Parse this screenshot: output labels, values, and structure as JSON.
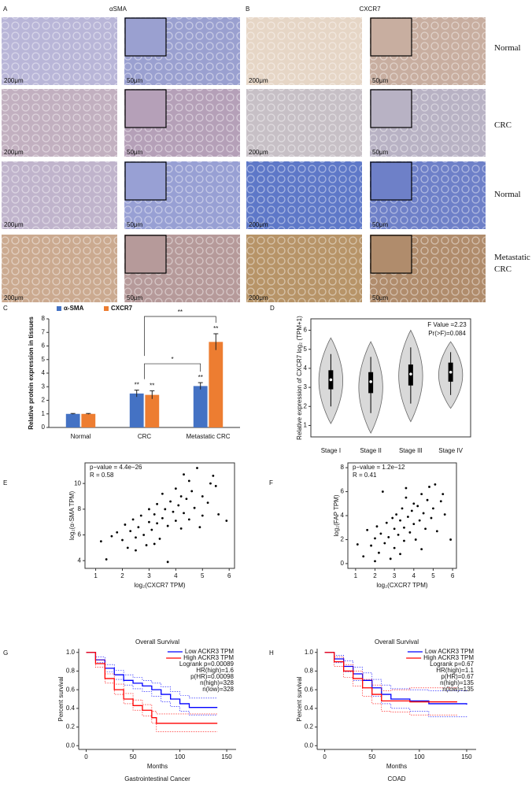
{
  "figure": {
    "panel_letters": [
      "A",
      "B",
      "C",
      "D",
      "E",
      "F",
      "G",
      "H"
    ],
    "stain_labels": [
      "αSMA",
      "CXCR7"
    ],
    "row_labels": [
      "Normal",
      "CRC",
      "Normal",
      "Metastatic CRC"
    ],
    "scale_labels": [
      "200μm",
      "50μm"
    ]
  },
  "chart_data": [
    {
      "type": "bar",
      "categories": [
        "Normal",
        "CRC",
        "Metastatic CRC"
      ],
      "series": [
        {
          "name": "α-SMA",
          "color": "#4472c4",
          "values": [
            1.0,
            2.5,
            3.05
          ],
          "errors": [
            0.03,
            0.25,
            0.25
          ],
          "significance": [
            null,
            "**",
            "**"
          ]
        },
        {
          "name": "CXCR7",
          "color": "#ed7d31",
          "values": [
            1.0,
            2.4,
            6.3
          ],
          "errors": [
            0.03,
            0.3,
            0.6
          ],
          "significance": [
            null,
            "**",
            "**"
          ]
        }
      ],
      "ylabel": "Relative protein expression in tissues",
      "ylim": [
        0,
        8
      ],
      "yticks": [
        0,
        1,
        2,
        3,
        4,
        5,
        6,
        7,
        8
      ],
      "comparisons": [
        "*",
        "**"
      ]
    },
    {
      "type": "violin",
      "categories": [
        "Stage I",
        "Stage II",
        "Stage III",
        "Stage IV"
      ],
      "stats": [
        {
          "min": 1.1,
          "q1": 2.9,
          "median": 3.4,
          "q3": 3.9,
          "max": 5.6
        },
        {
          "min": 0.6,
          "q1": 2.7,
          "median": 3.3,
          "q3": 3.8,
          "max": 5.4
        },
        {
          "min": 1.2,
          "q1": 3.1,
          "median": 3.7,
          "q3": 4.2,
          "max": 6.0
        },
        {
          "min": 1.9,
          "q1": 3.3,
          "median": 3.8,
          "q3": 4.3,
          "max": 5.4
        }
      ],
      "ylabel": "Relative expression of CXCR7 log₂ (TPM+1)",
      "ylim": [
        0.4,
        6.6
      ],
      "yticks": [
        1,
        2,
        3,
        4,
        5,
        6
      ],
      "annotations": [
        "F Value =2.23",
        "Pr(>F)=0.084"
      ],
      "color": "#d9d9d9",
      "frame": true
    },
    {
      "type": "scatter",
      "x": [
        1.2,
        1.4,
        1.6,
        1.8,
        2.0,
        2.1,
        2.2,
        2.3,
        2.4,
        2.5,
        2.6,
        2.7,
        2.8,
        2.9,
        3.0,
        3.0,
        3.1,
        3.2,
        3.3,
        3.3,
        3.4,
        3.5,
        3.5,
        3.6,
        3.7,
        3.7,
        3.8,
        3.9,
        4.0,
        4.0,
        4.1,
        4.2,
        4.2,
        4.3,
        4.4,
        4.5,
        4.5,
        4.6,
        4.7,
        4.8,
        4.9,
        5.0,
        5.0,
        5.2,
        5.3,
        5.4,
        5.5,
        5.6,
        5.9,
        2.5,
        3.2,
        4.3
      ],
      "y": [
        5.5,
        4.1,
        5.9,
        6.2,
        5.6,
        6.8,
        5.0,
        6.3,
        7.2,
        5.8,
        6.6,
        7.5,
        6.0,
        5.2,
        7.0,
        8.0,
        6.4,
        7.6,
        6.9,
        8.4,
        5.7,
        7.3,
        9.2,
        8.0,
        6.7,
        3.9,
        8.6,
        7.8,
        7.1,
        9.6,
        8.3,
        6.5,
        9.0,
        7.7,
        8.8,
        10.2,
        7.2,
        9.4,
        8.1,
        11.2,
        6.6,
        9.0,
        7.5,
        8.5,
        10.0,
        10.6,
        9.8,
        7.6,
        7.1,
        4.8,
        5.3,
        10.7
      ],
      "xlabel": "log₂(CXCR7 TPM)",
      "ylabel": "log₂(α-SMA TPM)",
      "xlim": [
        0.6,
        6.2
      ],
      "xticks": [
        1,
        2,
        3,
        4,
        5,
        6
      ],
      "ylim": [
        3.4,
        11.6
      ],
      "yticks": [
        4,
        6,
        8,
        10
      ],
      "annotations": [
        "p−value = 4.4e−26",
        "R = 0.58"
      ],
      "color": "#000000",
      "frame": true
    },
    {
      "type": "scatter",
      "x": [
        1.1,
        1.4,
        1.6,
        1.8,
        2.0,
        2.1,
        2.2,
        2.3,
        2.4,
        2.5,
        2.6,
        2.7,
        2.8,
        2.9,
        3.0,
        3.0,
        3.1,
        3.2,
        3.3,
        3.3,
        3.4,
        3.5,
        3.5,
        3.6,
        3.7,
        3.8,
        3.9,
        4.0,
        4.0,
        4.1,
        4.2,
        4.3,
        4.4,
        4.5,
        4.6,
        4.7,
        4.8,
        4.9,
        5.0,
        5.1,
        5.2,
        5.4,
        5.5,
        5.6,
        5.9,
        2.0,
        3.6,
        4.4
      ],
      "y": [
        1.6,
        0.6,
        2.8,
        1.5,
        2.1,
        3.1,
        0.9,
        2.5,
        6.0,
        1.7,
        3.4,
        2.2,
        0.4,
        3.8,
        2.9,
        1.3,
        4.1,
        2.4,
        3.6,
        0.8,
        4.6,
        3.0,
        1.9,
        5.5,
        3.9,
        2.6,
        4.4,
        3.3,
        5.0,
        2.0,
        4.8,
        3.6,
        5.8,
        4.2,
        2.9,
        5.3,
        6.4,
        3.8,
        4.6,
        6.6,
        2.7,
        5.2,
        5.8,
        4.1,
        2.0,
        0.2,
        6.3,
        1.2
      ],
      "xlabel": "log₂(CXCR7 TPM)",
      "ylabel": "log₂(FAP TPM)",
      "xlim": [
        0.6,
        6.2
      ],
      "xticks": [
        1,
        2,
        3,
        4,
        5,
        6
      ],
      "ylim": [
        -0.4,
        8.4
      ],
      "yticks": [
        0,
        2,
        4,
        6,
        8
      ],
      "annotations": [
        "p−value = 1.2e−12",
        "R = 0.41"
      ],
      "color": "#000000",
      "frame": true
    },
    {
      "type": "km",
      "title": "Overall Survival",
      "xlabel": "Months",
      "subtitle": "Gastrointestinal Cancer",
      "ylabel": "Percent survival",
      "xlim": [
        -8,
        160
      ],
      "xticks": [
        0,
        50,
        100,
        150
      ],
      "ylim": [
        -0.04,
        1.04
      ],
      "yticks": [
        {
          "value": 0,
          "label": "0.0"
        },
        0.2,
        0.4,
        0.6,
        0.8,
        {
          "value": 1,
          "label": "1.0"
        }
      ],
      "series": [
        {
          "name": "Low ACKR3 TPM",
          "color": "#0000ff",
          "x": [
            0,
            10,
            20,
            30,
            40,
            50,
            60,
            70,
            80,
            90,
            100,
            110,
            140
          ],
          "values": [
            1,
            0.92,
            0.83,
            0.76,
            0.7,
            0.67,
            0.64,
            0.6,
            0.55,
            0.5,
            0.45,
            0.41,
            0.41
          ],
          "lower": [
            1,
            0.89,
            0.79,
            0.71,
            0.65,
            0.61,
            0.58,
            0.53,
            0.47,
            0.42,
            0.37,
            0.33,
            0.33
          ],
          "upper": [
            1,
            0.95,
            0.87,
            0.81,
            0.76,
            0.73,
            0.7,
            0.67,
            0.63,
            0.58,
            0.54,
            0.51,
            0.51
          ]
        },
        {
          "name": "High ACKR3 TPM",
          "color": "#ff0000",
          "x": [
            0,
            10,
            20,
            30,
            40,
            50,
            60,
            70,
            75,
            140
          ],
          "values": [
            1,
            0.88,
            0.72,
            0.6,
            0.5,
            0.43,
            0.38,
            0.3,
            0.24,
            0.24
          ],
          "lower": [
            1,
            0.84,
            0.67,
            0.55,
            0.45,
            0.38,
            0.32,
            0.24,
            0.15,
            0.15
          ],
          "upper": [
            1,
            0.92,
            0.77,
            0.66,
            0.56,
            0.49,
            0.44,
            0.37,
            0.34,
            0.34
          ]
        }
      ],
      "annotations": [
        "Logrank p=0.00089",
        "HR(high)=1.6",
        "p(HR)=0.00098",
        "n(high)=328",
        "n(low)=328"
      ]
    },
    {
      "type": "km",
      "title": "Overall Survival",
      "xlabel": "Months",
      "subtitle": "COAD",
      "ylabel": "Percent survival",
      "xlim": [
        -8,
        160
      ],
      "xticks": [
        0,
        50,
        100,
        150
      ],
      "ylim": [
        -0.04,
        1.04
      ],
      "yticks": [
        {
          "value": 0,
          "label": "0.0"
        },
        0.2,
        0.4,
        0.6,
        0.8,
        {
          "value": 1,
          "label": "1.0"
        }
      ],
      "series": [
        {
          "name": "Low ACKR3 TPM",
          "color": "#0000ff",
          "x": [
            0,
            10,
            20,
            30,
            40,
            50,
            60,
            70,
            90,
            110,
            150
          ],
          "values": [
            1,
            0.93,
            0.85,
            0.77,
            0.7,
            0.62,
            0.55,
            0.5,
            0.48,
            0.45,
            0.44
          ],
          "lower": [
            1,
            0.89,
            0.79,
            0.7,
            0.62,
            0.53,
            0.45,
            0.4,
            0.37,
            0.31,
            0.3
          ],
          "upper": [
            1,
            0.97,
            0.91,
            0.84,
            0.78,
            0.71,
            0.65,
            0.61,
            0.6,
            0.59,
            0.58
          ]
        },
        {
          "name": "High ACKR3 TPM",
          "color": "#ff0000",
          "x": [
            0,
            10,
            20,
            30,
            40,
            50,
            60,
            70,
            90,
            140
          ],
          "values": [
            1,
            0.9,
            0.8,
            0.72,
            0.62,
            0.55,
            0.48,
            0.48,
            0.47,
            0.47
          ],
          "lower": [
            1,
            0.85,
            0.73,
            0.64,
            0.53,
            0.45,
            0.37,
            0.36,
            0.33,
            0.33
          ],
          "upper": [
            1,
            0.95,
            0.87,
            0.8,
            0.71,
            0.65,
            0.59,
            0.6,
            0.62,
            0.62
          ]
        }
      ],
      "annotations": [
        "Logrank p=0.67",
        "HR(high)=1.1",
        "p(HR)=0.67",
        "n(high)=135",
        "n(low)=135"
      ]
    }
  ]
}
